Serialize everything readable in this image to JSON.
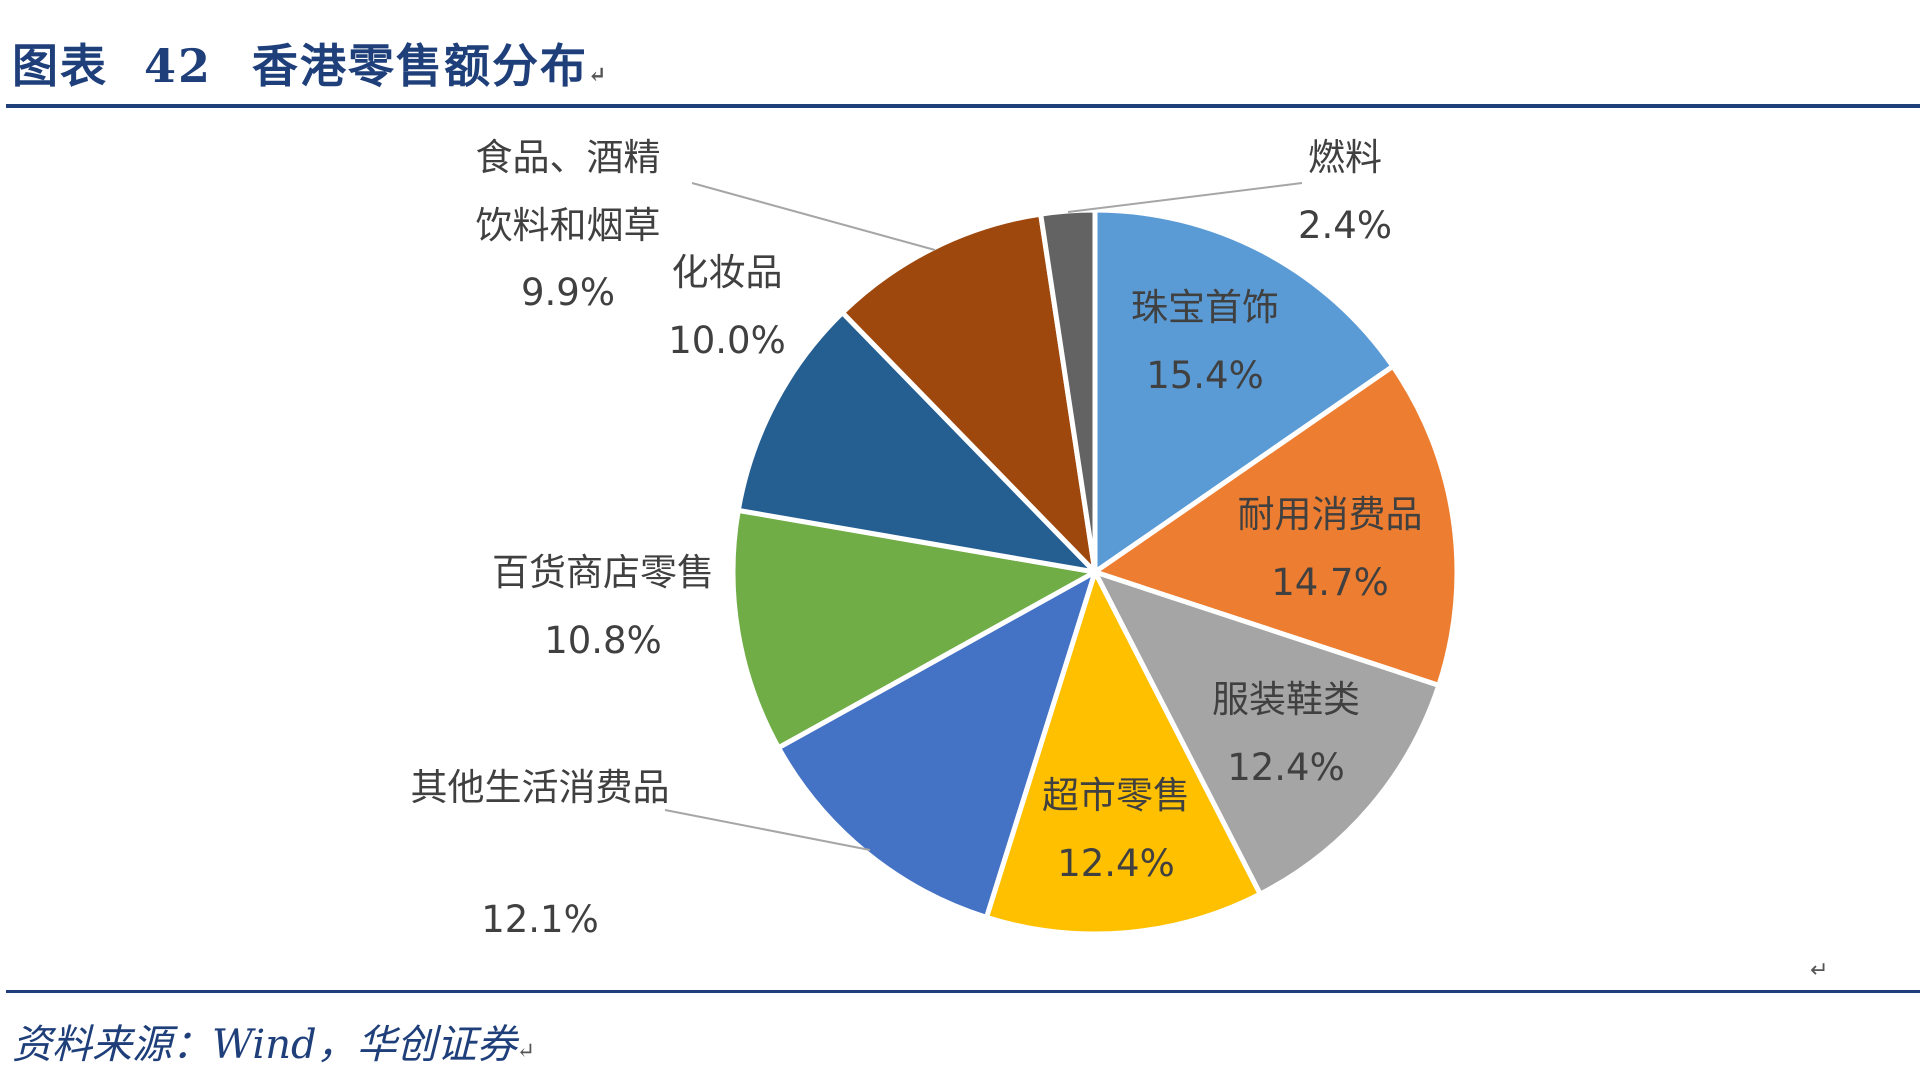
{
  "figure": {
    "title_prefix": "图表",
    "title_number": "42",
    "title": "香港零售额分布",
    "source": "资料来源：Wind，华创证券"
  },
  "chart_data": {
    "type": "pie",
    "title": "",
    "slices": [
      {
        "label": "珠宝首饰",
        "value": 15.4,
        "value_label": "15.4%",
        "color": "#5b9bd5"
      },
      {
        "label": "耐用消费品",
        "value": 14.7,
        "value_label": "14.7%",
        "color": "#ed7d31"
      },
      {
        "label": "服装鞋类",
        "value": 12.4,
        "value_label": "12.4%",
        "color": "#a5a5a5"
      },
      {
        "label": "超市零售",
        "value": 12.4,
        "value_label": "12.4%",
        "color": "#ffc000"
      },
      {
        "label": "其他生活消费品",
        "value": 12.1,
        "value_label": "12.1%",
        "color": "#4472c4"
      },
      {
        "label": "百货商店零售",
        "value": 10.8,
        "value_label": "10.8%",
        "color": "#70ad47"
      },
      {
        "label": "化妆品",
        "value": 10.0,
        "value_label": "10.0%",
        "color": "#255e91"
      },
      {
        "label": "食品、酒精饮料和烟草",
        "value": 9.9,
        "value_label": "9.9%",
        "color": "#9e480e"
      },
      {
        "label": "燃料",
        "value": 2.4,
        "value_label": "2.4%",
        "color": "#636363"
      }
    ]
  }
}
